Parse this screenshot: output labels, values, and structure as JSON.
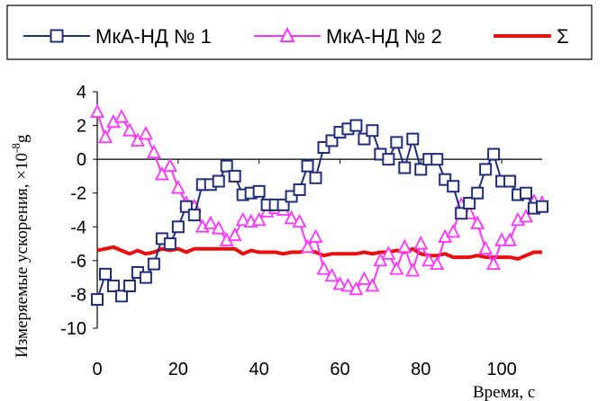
{
  "chart_data": {
    "type": "line",
    "xlabel": "Время,  с",
    "ylabel": "Измеряемые ускорения, ×10",
    "ylabel_exp": "-8",
    "ylabel_unit": "g",
    "xlim": [
      0,
      110
    ],
    "ylim": [
      -10,
      4
    ],
    "xticks": [
      0,
      20,
      40,
      60,
      80,
      100
    ],
    "yticks": [
      4,
      2,
      0,
      -2,
      -4,
      -6,
      -8,
      -10
    ],
    "grid": false,
    "legend": "top",
    "series": [
      {
        "name": "МкА-НД № 1",
        "color": "#1f2d7a",
        "marker": "square",
        "x": [
          0,
          2,
          4,
          6,
          8,
          10,
          12,
          14,
          16,
          18,
          20,
          22,
          24,
          26,
          28,
          30,
          32,
          34,
          36,
          38,
          40,
          42,
          44,
          46,
          48,
          50,
          52,
          54,
          56,
          58,
          60,
          62,
          64,
          66,
          68,
          70,
          72,
          74,
          76,
          78,
          80,
          82,
          84,
          86,
          88,
          90,
          92,
          94,
          96,
          98,
          100,
          102,
          104,
          106,
          108,
          110
        ],
        "values": [
          -8.3,
          -6.8,
          -7.5,
          -8.1,
          -7.5,
          -6.7,
          -7.0,
          -6.2,
          -4.7,
          -5.0,
          -4.0,
          -2.8,
          -3.3,
          -1.5,
          -1.5,
          -1.3,
          -0.4,
          -1.0,
          -2.1,
          -2.0,
          -1.9,
          -2.7,
          -2.7,
          -2.7,
          -2.2,
          -1.8,
          -0.4,
          -1.1,
          0.7,
          1.1,
          1.6,
          1.8,
          2.0,
          1.2,
          1.7,
          0.3,
          0.0,
          1.0,
          -0.5,
          1.2,
          -0.6,
          0.0,
          0.0,
          -1.2,
          -1.6,
          -3.2,
          -2.6,
          -2.0,
          -0.6,
          0.3,
          -1.3,
          -1.3,
          -2.1,
          -2.0,
          -2.9,
          -2.8
        ]
      },
      {
        "name": "МкА-НД № 2",
        "color": "#ff33ff",
        "marker": "triangle",
        "x": [
          0,
          2,
          4,
          6,
          8,
          10,
          12,
          14,
          16,
          18,
          20,
          22,
          24,
          26,
          28,
          30,
          32,
          34,
          36,
          38,
          40,
          42,
          44,
          46,
          48,
          50,
          52,
          54,
          56,
          58,
          60,
          62,
          64,
          66,
          68,
          70,
          72,
          74,
          76,
          78,
          80,
          82,
          84,
          86,
          88,
          90,
          92,
          94,
          96,
          98,
          100,
          102,
          104,
          106,
          108,
          110
        ],
        "values": [
          2.8,
          1.3,
          2.2,
          2.5,
          1.7,
          1.1,
          1.5,
          0.4,
          -0.9,
          -0.4,
          -1.7,
          -2.6,
          -2.8,
          -4.0,
          -3.8,
          -4.1,
          -4.8,
          -4.5,
          -3.6,
          -3.7,
          -3.6,
          -3.1,
          -2.9,
          -3.0,
          -3.5,
          -3.7,
          -5.2,
          -4.6,
          -6.5,
          -6.9,
          -7.4,
          -7.5,
          -7.7,
          -7.1,
          -7.5,
          -6.0,
          -5.6,
          -6.5,
          -5.2,
          -6.6,
          -5.0,
          -6.0,
          -6.2,
          -4.6,
          -4.3,
          -2.7,
          -3.2,
          -3.8,
          -5.3,
          -6.2,
          -4.8,
          -4.8,
          -3.6,
          -3.4,
          -2.5,
          -2.6
        ]
      },
      {
        "name": "Σ",
        "color": "#e8100e",
        "marker": "none",
        "x": [
          0,
          2,
          4,
          6,
          8,
          10,
          12,
          14,
          16,
          18,
          20,
          22,
          24,
          26,
          28,
          30,
          32,
          34,
          36,
          38,
          40,
          42,
          44,
          46,
          48,
          50,
          52,
          54,
          56,
          58,
          60,
          62,
          64,
          66,
          68,
          70,
          72,
          74,
          76,
          78,
          80,
          82,
          84,
          86,
          88,
          90,
          92,
          94,
          96,
          98,
          100,
          102,
          104,
          106,
          108,
          110
        ],
        "values": [
          -5.4,
          -5.3,
          -5.2,
          -5.4,
          -5.6,
          -5.4,
          -5.6,
          -5.5,
          -5.3,
          -5.4,
          -5.3,
          -5.5,
          -5.3,
          -5.3,
          -5.3,
          -5.3,
          -5.3,
          -5.3,
          -5.6,
          -5.4,
          -5.5,
          -5.5,
          -5.5,
          -5.6,
          -5.5,
          -5.5,
          -5.4,
          -5.5,
          -5.7,
          -5.6,
          -5.6,
          -5.6,
          -5.6,
          -5.5,
          -5.6,
          -5.5,
          -5.5,
          -5.4,
          -5.5,
          -5.3,
          -5.6,
          -5.7,
          -5.7,
          -5.6,
          -5.8,
          -5.8,
          -5.8,
          -5.7,
          -5.8,
          -5.8,
          -5.8,
          -5.8,
          -5.9,
          -5.7,
          -5.5,
          -5.5
        ]
      }
    ]
  }
}
